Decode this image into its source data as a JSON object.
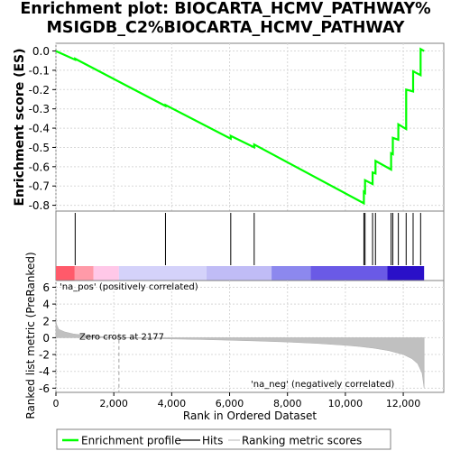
{
  "title": {
    "line1": "Enrichment plot: BIOCARTA_HCMV_PATHWAY%",
    "line2": "MSIGDB_C2%BIOCARTA_HCMV_PATHWAY"
  },
  "chart_data": [
    {
      "type": "line",
      "name": "enrichment-score-panel",
      "ylabel": "Enrichment score (ES)",
      "ylim": [
        -0.83,
        0.04
      ],
      "xlim": [
        0,
        13400
      ],
      "yticks": [
        "0.0",
        "-0.1",
        "-0.2",
        "-0.3",
        "-0.4",
        "-0.5",
        "-0.6",
        "-0.7",
        "-0.8"
      ],
      "ytick_values": [
        0.0,
        -0.1,
        -0.2,
        -0.3,
        -0.4,
        -0.5,
        -0.6,
        -0.7,
        -0.8
      ],
      "grid": true,
      "color": "#00ff00",
      "x": [
        0,
        665,
        665,
        3785,
        3785,
        6040,
        6040,
        6850,
        6850,
        10640,
        10640,
        10680,
        10680,
        10940,
        10940,
        11040,
        11040,
        11580,
        11580,
        11640,
        11640,
        11830,
        11830,
        12100,
        12100,
        12340,
        12340,
        12600,
        12600,
        12720
      ],
      "y": [
        0.0,
        -0.045,
        -0.04,
        -0.285,
        -0.28,
        -0.455,
        -0.44,
        -0.5,
        -0.485,
        -0.79,
        -0.73,
        -0.735,
        -0.67,
        -0.69,
        -0.63,
        -0.635,
        -0.57,
        -0.615,
        -0.53,
        -0.535,
        -0.45,
        -0.46,
        -0.38,
        -0.405,
        -0.2,
        -0.21,
        -0.105,
        -0.125,
        0.01,
        0.0
      ]
    },
    {
      "type": "scatter",
      "name": "hits-panel",
      "description_free": true,
      "hits": [
        665,
        3785,
        6040,
        6850,
        10640,
        10680,
        10940,
        11040,
        11580,
        11640,
        11830,
        12100,
        12340,
        12600
      ]
    },
    {
      "type": "area",
      "name": "ranked-list-metric-panel",
      "ylabel": "Ranked list metric (PreRanked)",
      "xlabel": "Rank in Ordered Dataset",
      "xlim": [
        0,
        13400
      ],
      "ylim": [
        -6.5,
        6.8
      ],
      "xticks": [
        "0",
        "2,000",
        "4,000",
        "6,000",
        "8,000",
        "10,000",
        "12,000"
      ],
      "xtick_values": [
        0,
        2000,
        4000,
        6000,
        8000,
        10000,
        12000
      ],
      "yticks": [
        "6",
        "4",
        "2",
        "0",
        "-2",
        "-4",
        "-6"
      ],
      "ytick_values": [
        6,
        4,
        2,
        0,
        -2,
        -4,
        -6
      ],
      "grid": true,
      "fill_color": "#c0c0c0",
      "x": [
        0,
        30,
        100,
        300,
        600,
        1000,
        1500,
        2000,
        2177,
        3000,
        4000,
        5000,
        6000,
        7000,
        8000,
        9000,
        10000,
        10500,
        11000,
        11500,
        12000,
        12300,
        12500,
        12650,
        12720
      ],
      "y": [
        2.0,
        1.5,
        1.0,
        0.7,
        0.45,
        0.3,
        0.15,
        0.05,
        0.0,
        -0.08,
        -0.15,
        -0.22,
        -0.3,
        -0.4,
        -0.52,
        -0.68,
        -0.9,
        -1.05,
        -1.25,
        -1.55,
        -2.0,
        -2.5,
        -3.1,
        -4.2,
        -6.0
      ],
      "zero_cross_label": "Zero cross at 2177",
      "zero_cross": 2177,
      "pos_label": "'na_pos' (positively correlated)",
      "neg_label": "'na_neg' (negatively correlated)",
      "pos_label_color": "#ff0000",
      "neg_label_color": "#0000ff",
      "heat_segments": [
        {
          "from": 0,
          "to": 650,
          "color": "#ff5a6a"
        },
        {
          "from": 650,
          "to": 1300,
          "color": "#ff9aa8"
        },
        {
          "from": 1300,
          "to": 2177,
          "color": "#ffc8e8"
        },
        {
          "from": 2177,
          "to": 5200,
          "color": "#d4d2fa"
        },
        {
          "from": 5200,
          "to": 7450,
          "color": "#c0bcf6"
        },
        {
          "from": 7450,
          "to": 8800,
          "color": "#8c88ee"
        },
        {
          "from": 8800,
          "to": 11450,
          "color": "#6a5ae6"
        },
        {
          "from": 11450,
          "to": 12720,
          "color": "#2a10c8"
        }
      ]
    }
  ],
  "legend": {
    "items": [
      {
        "label": "Enrichment profile",
        "color": "#00ff00",
        "kind": "thick-line"
      },
      {
        "label": "Hits",
        "color": "#000000",
        "kind": "thin-line"
      },
      {
        "label": "Ranking metric scores",
        "color": "#c0c0c0",
        "kind": "thin-line"
      }
    ]
  }
}
